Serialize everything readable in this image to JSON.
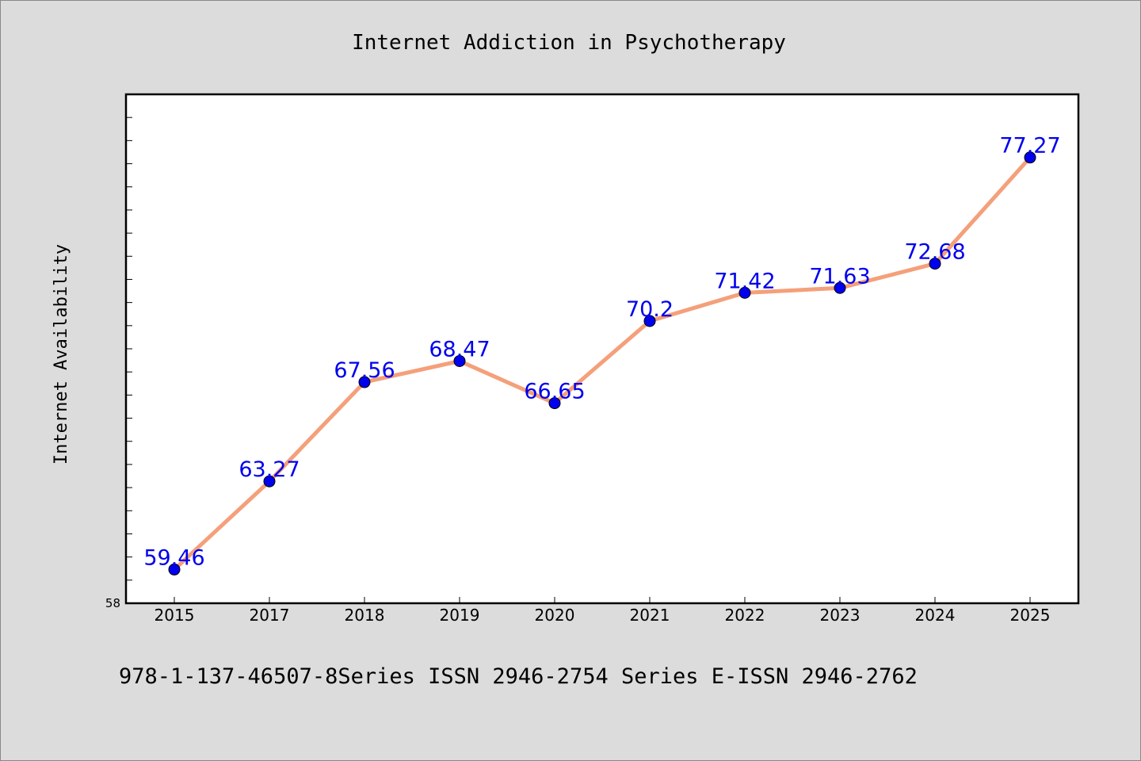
{
  "chart_data": {
    "type": "line",
    "title": "Internet Addiction in Psychotherapy",
    "xlabel": "",
    "ylabel": "Internet Availability",
    "categories": [
      "2015",
      "2017",
      "2018",
      "2019",
      "2020",
      "2021",
      "2022",
      "2023",
      "2024",
      "2025"
    ],
    "series": [
      {
        "values": [
          59.46,
          63.27,
          67.56,
          68.47,
          66.65,
          70.2,
          71.42,
          71.63,
          72.68,
          77.27
        ],
        "data_labels": [
          "59.46",
          "63.27",
          "67.56",
          "68.47",
          "66.65",
          "70.2",
          "71.42",
          "71.63",
          "72.68",
          "77.27"
        ],
        "line_color": "#f4a07a",
        "marker_color": "#0000ee"
      }
    ],
    "ylim": [
      58,
      80
    ],
    "y_tick_labels": [
      "58"
    ],
    "grid": false,
    "legend": "none"
  },
  "footer": {
    "text": "978-1-137-46507-8Series ISSN 2946-2754 Series E-ISSN 2946-2762"
  },
  "colors": {
    "background": "#dcdcdc",
    "plot_background": "#ffffff",
    "label_color": "#0000ee",
    "text": "#000000"
  }
}
